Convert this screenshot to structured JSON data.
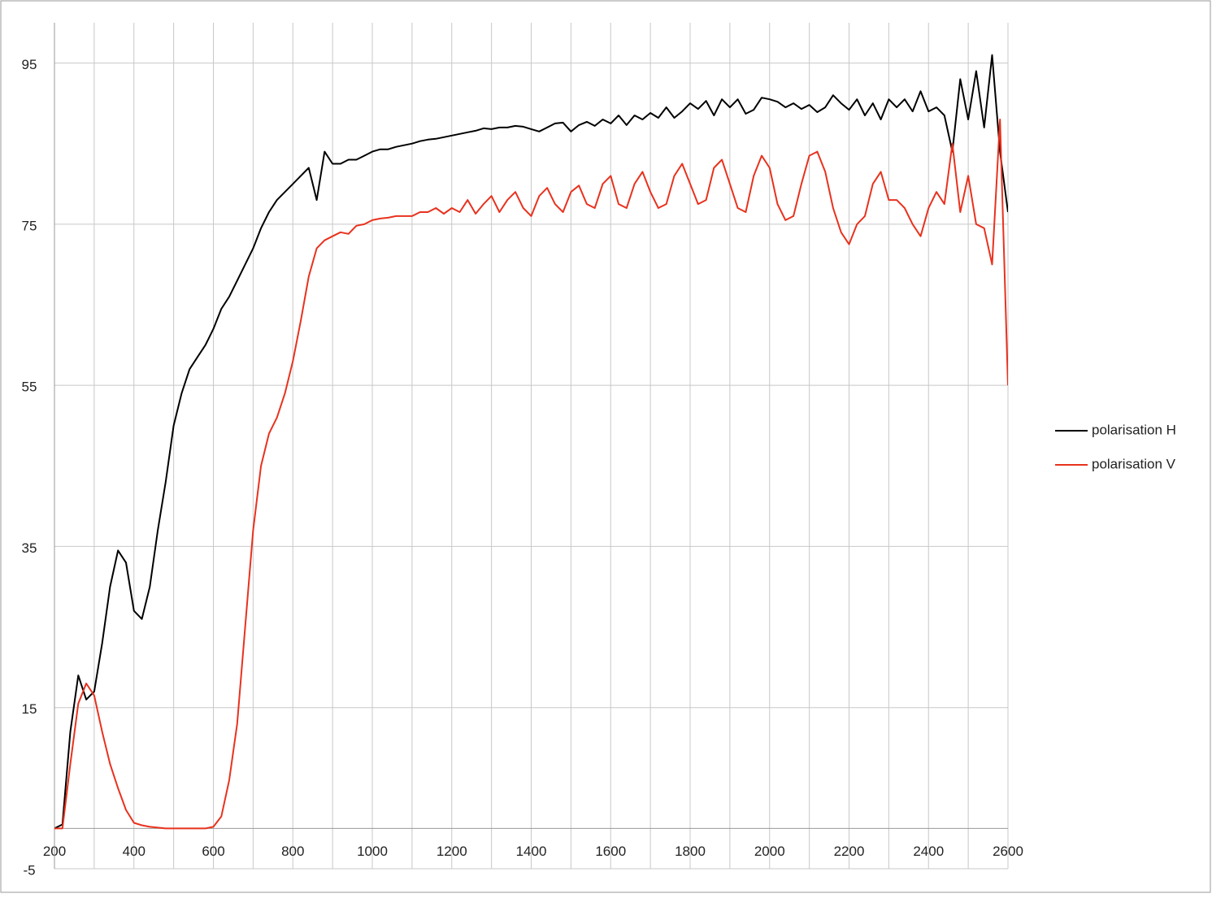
{
  "chart_data": {
    "type": "line",
    "x": [
      200,
      220,
      240,
      260,
      280,
      300,
      320,
      340,
      360,
      380,
      400,
      420,
      440,
      460,
      480,
      500,
      520,
      540,
      560,
      580,
      600,
      620,
      640,
      660,
      680,
      700,
      720,
      740,
      760,
      780,
      800,
      820,
      840,
      860,
      880,
      900,
      920,
      940,
      960,
      980,
      1000,
      1020,
      1040,
      1060,
      1080,
      1100,
      1120,
      1140,
      1160,
      1180,
      1200,
      1220,
      1240,
      1260,
      1280,
      1300,
      1320,
      1340,
      1360,
      1380,
      1400,
      1420,
      1440,
      1460,
      1480,
      1500,
      1520,
      1540,
      1560,
      1580,
      1600,
      1620,
      1640,
      1660,
      1680,
      1700,
      1720,
      1740,
      1760,
      1780,
      1800,
      1820,
      1840,
      1860,
      1880,
      1900,
      1920,
      1940,
      1960,
      1980,
      2000,
      2020,
      2040,
      2060,
      2080,
      2100,
      2120,
      2140,
      2160,
      2180,
      2200,
      2220,
      2240,
      2260,
      2280,
      2300,
      2320,
      2340,
      2360,
      2380,
      2400,
      2420,
      2440,
      2460,
      2480,
      2500,
      2520,
      2540,
      2560,
      2580,
      2600
    ],
    "series": [
      {
        "name": "polarisation H",
        "color": "#000000",
        "values": [
          0,
          0.5,
          12,
          19,
          16,
          17,
          23,
          30,
          34.5,
          33,
          27,
          26,
          30,
          37,
          43,
          50,
          54,
          57,
          58.5,
          60,
          62,
          64.5,
          66,
          68,
          70,
          72,
          74.5,
          76.5,
          78,
          79,
          80,
          81,
          82,
          78,
          84,
          82.5,
          82.5,
          83,
          83,
          83.5,
          84,
          84.3,
          84.3,
          84.6,
          84.8,
          85,
          85.3,
          85.5,
          85.6,
          85.8,
          86,
          86.2,
          86.4,
          86.6,
          86.9,
          86.8,
          87,
          87,
          87.2,
          87.1,
          86.8,
          86.5,
          87,
          87.5,
          87.6,
          86.5,
          87.3,
          87.7,
          87.2,
          88,
          87.5,
          88.5,
          87.3,
          88.5,
          88,
          88.8,
          88.2,
          89.5,
          88.2,
          89,
          90,
          89.3,
          90.3,
          88.5,
          90.5,
          89.5,
          90.5,
          88.7,
          89.2,
          90.7,
          90.5,
          90.2,
          89.5,
          90,
          89.3,
          89.8,
          88.9,
          89.5,
          91,
          90,
          89.2,
          90.5,
          88.5,
          90,
          88,
          90.5,
          89.5,
          90.5,
          89,
          91.5,
          89,
          89.5,
          88.5,
          84,
          93,
          88,
          94,
          87,
          96,
          84,
          76.5
        ]
      },
      {
        "name": "polarisation V",
        "color": "#e8321e",
        "values": [
          0,
          0,
          8,
          15.5,
          18,
          16.5,
          12,
          8,
          5,
          2.3,
          0.7,
          0.4,
          0.2,
          0.1,
          0,
          0,
          0,
          0,
          0,
          0,
          0.2,
          1.5,
          6,
          13,
          25,
          37,
          45,
          49,
          51,
          54,
          58,
          63,
          68.5,
          72,
          73,
          73.5,
          74,
          73.8,
          74.8,
          75,
          75.5,
          75.7,
          75.8,
          76,
          76,
          76,
          76.5,
          76.5,
          77,
          76.3,
          77,
          76.5,
          78,
          76.3,
          77.5,
          78.5,
          76.5,
          78,
          79,
          77,
          76,
          78.5,
          79.5,
          77.5,
          76.5,
          79,
          79.8,
          77.5,
          77,
          80,
          81,
          77.5,
          77,
          80,
          81.5,
          79,
          77,
          77.5,
          81,
          82.5,
          80,
          77.5,
          78,
          82,
          83,
          80,
          77,
          76.5,
          81,
          83.5,
          82,
          77.5,
          75.5,
          76,
          80,
          83.5,
          84,
          81.5,
          77,
          74,
          72.5,
          75,
          76,
          80,
          81.5,
          78,
          78,
          77,
          75,
          73.5,
          77,
          79,
          77.5,
          85,
          76.5,
          81,
          75,
          74.5,
          70,
          88,
          55
        ]
      }
    ],
    "xlim": [
      200,
      2600
    ],
    "xticks": [
      200,
      400,
      600,
      800,
      1000,
      1200,
      1400,
      1600,
      1800,
      2000,
      2200,
      2400,
      2600
    ],
    "ylim": [
      -5,
      100
    ],
    "yticks": [
      -5,
      15,
      35,
      55,
      75,
      95
    ],
    "grid": true,
    "legend": "right"
  }
}
